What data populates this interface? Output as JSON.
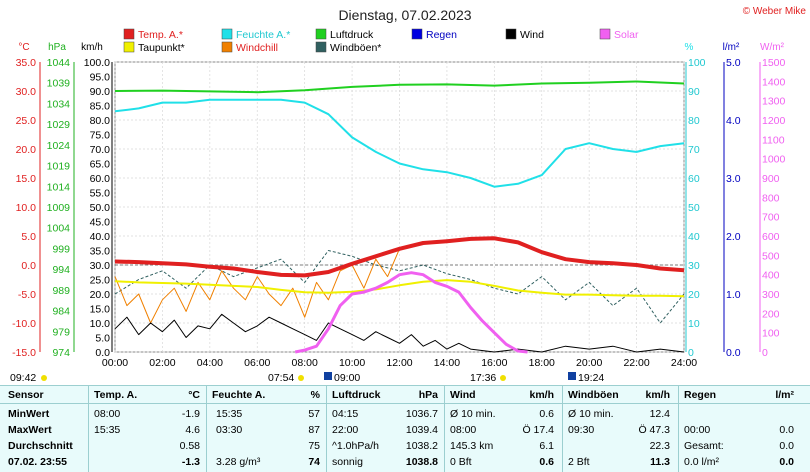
{
  "title": "Dienstag, 07.02.2023",
  "copyright": "© Weber Mike",
  "axis_units": {
    "temp": "°C",
    "press": "hPa",
    "wind": "km/h",
    "hum": "%",
    "rain": "l/m²",
    "solar": "W/m²"
  },
  "legend": [
    {
      "label": "Temp. A.*",
      "color": "#e02020"
    },
    {
      "label": "Feuchte A.*",
      "color": "#20e0e8"
    },
    {
      "label": "Luftdruck",
      "color": "#20d020"
    },
    {
      "label": "Regen",
      "color": "#0000e0"
    },
    {
      "label": "Wind",
      "color": "#000000"
    },
    {
      "label": "Solar",
      "color": "#f060f0"
    },
    {
      "label": "Taupunkt*",
      "color": "#f0f000"
    },
    {
      "label": "Windchill",
      "color": "#f08000"
    },
    {
      "label": "Windböen*",
      "color": "#306060"
    }
  ],
  "markers": {
    "sunrise_left": "09:42",
    "sunrise": "07:54",
    "solar_noon": "09:00",
    "max": "17:36",
    "sunset": "19:24"
  },
  "chart_data": {
    "type": "line",
    "x_ticks": [
      "00:00",
      "02:00",
      "04:00",
      "06:00",
      "08:00",
      "10:00",
      "12:00",
      "14:00",
      "16:00",
      "18:00",
      "20:00",
      "22:00",
      "24:00"
    ],
    "axes": {
      "temp": {
        "label": "°C",
        "ticks": [
          "35.0",
          "30.0",
          "25.0",
          "20.0",
          "15.0",
          "10.0",
          "5.0",
          "0.0",
          "-5.0",
          "-10.0",
          "-15.0"
        ],
        "ylim": [
          -15,
          35
        ]
      },
      "press": {
        "label": "hPa",
        "ticks": [
          "1044",
          "1039",
          "1034",
          "1029",
          "1024",
          "1019",
          "1014",
          "1009",
          "1004",
          "999",
          "994",
          "989",
          "984",
          "979",
          "974"
        ],
        "ylim": [
          974,
          1044
        ]
      },
      "wind": {
        "label": "km/h",
        "ticks": [
          "100.0",
          "95.0",
          "90.0",
          "85.0",
          "80.0",
          "75.0",
          "70.0",
          "65.0",
          "60.0",
          "55.0",
          "50.0",
          "45.0",
          "40.0",
          "35.0",
          "30.0",
          "25.0",
          "20.0",
          "15.0",
          "10.0",
          "5.0",
          "0.0"
        ],
        "ylim": [
          0,
          100
        ]
      },
      "hum": {
        "label": "%",
        "ticks": [
          "100",
          "90",
          "80",
          "70",
          "60",
          "50",
          "40",
          "30",
          "20",
          "10",
          "0"
        ],
        "ylim": [
          0,
          100
        ]
      },
      "rain": {
        "label": "l/m²",
        "ticks": [
          "5.0",
          "4.0",
          "3.0",
          "2.0",
          "1.0",
          "0.0"
        ],
        "ylim": [
          0,
          5
        ]
      },
      "solar": {
        "label": "W/m²",
        "ticks": [
          "1500",
          "1400",
          "1300",
          "1200",
          "1100",
          "1000",
          "900",
          "800",
          "700",
          "600",
          "500",
          "400",
          "300",
          "200",
          "100",
          "0"
        ],
        "ylim": [
          0,
          1500
        ]
      }
    },
    "series": [
      {
        "name": "Temp. A.*",
        "color": "#e02020",
        "axis": "temp",
        "x": [
          0,
          1,
          2,
          3,
          4,
          5,
          6,
          7,
          8,
          9,
          10,
          11,
          12,
          13,
          14,
          15,
          16,
          17,
          18,
          19,
          20,
          21,
          22,
          23,
          24
        ],
        "y": [
          0.6,
          0.5,
          0.3,
          0.1,
          -0.3,
          -0.6,
          -1.2,
          -1.7,
          -1.8,
          -1.2,
          0.2,
          1.5,
          2.8,
          3.8,
          4.1,
          4.5,
          4.6,
          3.9,
          2.2,
          1.0,
          0.5,
          0.3,
          0.0,
          -0.6,
          -0.9
        ]
      },
      {
        "name": "Feuchte A.*",
        "color": "#20e0e8",
        "axis": "hum",
        "x": [
          0,
          1,
          2,
          3,
          4,
          5,
          6,
          7,
          8,
          9,
          10,
          11,
          12,
          13,
          14,
          15,
          16,
          17,
          18,
          19,
          20,
          21,
          22,
          23,
          24
        ],
        "y": [
          83,
          84,
          86,
          86,
          87,
          87,
          87,
          87,
          86,
          82,
          74,
          69,
          65,
          63,
          62,
          60,
          57,
          58,
          61,
          70,
          72,
          70,
          69,
          71,
          72
        ]
      },
      {
        "name": "Luftdruck",
        "color": "#20d020",
        "axis": "press",
        "x": [
          0,
          2,
          4,
          6,
          8,
          10,
          12,
          14,
          16,
          18,
          20,
          22,
          24
        ],
        "y": [
          1037.0,
          1037.1,
          1036.9,
          1036.7,
          1037.2,
          1038.0,
          1038.5,
          1038.6,
          1038.3,
          1038.8,
          1039.0,
          1039.3,
          1038.8
        ]
      },
      {
        "name": "Taupunkt*",
        "color": "#f0f000",
        "axis": "temp",
        "x": [
          0,
          1,
          2,
          3,
          4,
          5,
          6,
          7,
          8,
          9,
          10,
          11,
          12,
          13,
          14,
          15,
          16,
          17,
          18,
          19,
          20,
          21,
          22,
          23,
          24
        ],
        "y": [
          -2.8,
          -3.0,
          -3.1,
          -3.2,
          -3.4,
          -3.6,
          -3.8,
          -4.3,
          -4.7,
          -4.8,
          -4.6,
          -4.2,
          -3.5,
          -2.9,
          -2.6,
          -2.9,
          -3.6,
          -4.4,
          -4.8,
          -5.1,
          -5.1,
          -5.2,
          -5.3,
          -5.3,
          -5.4
        ]
      },
      {
        "name": "Windchill",
        "color": "#f08000",
        "axis": "temp",
        "x": [
          0,
          0.5,
          1,
          1.5,
          2,
          2.5,
          3,
          3.5,
          4,
          4.5,
          5,
          5.5,
          6,
          6.5,
          7,
          7.5,
          8,
          8.5,
          9,
          9.5,
          10,
          10.5,
          11,
          11.5,
          12,
          13,
          14,
          15,
          16
        ],
        "y": [
          -2,
          -7,
          -5,
          -10,
          -6,
          -4,
          -8,
          -3,
          -6,
          -1,
          -4,
          -6,
          -2,
          -5,
          -7,
          -4,
          -9,
          -3,
          -6,
          -1,
          0,
          -4,
          1,
          -2,
          2.8,
          3.8,
          4.1,
          4.5,
          4.6
        ]
      },
      {
        "name": "Wind",
        "color": "#000000",
        "axis": "wind",
        "x": [
          0,
          0.5,
          1,
          1.5,
          2,
          2.5,
          3,
          3.5,
          4,
          4.5,
          5,
          5.5,
          6,
          6.5,
          7,
          7.5,
          8,
          8.5,
          9,
          9.5,
          10,
          10.5,
          11,
          11.5,
          12,
          12.5,
          13,
          13.5,
          14,
          14.5,
          15,
          16,
          17,
          18,
          19,
          20,
          21,
          22,
          23,
          24
        ],
        "y": [
          8,
          12,
          6,
          10,
          7,
          11,
          5,
          9,
          8,
          13,
          10,
          7,
          9,
          12,
          10,
          8,
          6,
          4,
          10,
          8,
          6,
          4,
          7,
          5,
          3,
          6,
          2,
          4,
          1,
          3,
          1,
          0,
          1,
          0,
          2,
          1,
          2,
          0,
          1,
          0
        ]
      },
      {
        "name": "Windböen*",
        "color": "#306060",
        "axis": "wind",
        "x": [
          0,
          1,
          2,
          3,
          4,
          5,
          6,
          7,
          8,
          9,
          10,
          11,
          12,
          13,
          14,
          15,
          16,
          17,
          18,
          19,
          20,
          21,
          22,
          23,
          24
        ],
        "y": [
          20,
          25,
          28,
          22,
          30,
          26,
          29,
          32,
          24,
          35,
          33,
          30,
          28,
          30,
          27,
          25,
          22,
          20,
          26,
          18,
          24,
          16,
          22,
          10,
          20
        ]
      },
      {
        "name": "Solar",
        "color": "#f060f0",
        "axis": "solar",
        "x": [
          7.6,
          8,
          8.5,
          9,
          9.5,
          10,
          10.5,
          11,
          11.5,
          12,
          12.5,
          13,
          13.5,
          14,
          14.5,
          15,
          15.5,
          16,
          16.5,
          17,
          17.4
        ],
        "y": [
          0,
          10,
          30,
          120,
          240,
          300,
          310,
          330,
          360,
          400,
          410,
          400,
          360,
          340,
          310,
          230,
          160,
          100,
          40,
          5,
          0
        ]
      }
    ],
    "rain_values": [
      0.0
    ]
  },
  "table": {
    "headers": [
      "Sensor",
      "Temp. A.",
      "°C",
      "Feuchte A.",
      "%",
      "Luftdruck",
      "hPa",
      "Wind",
      "km/h",
      "Windböen",
      "km/h",
      "Regen",
      "l/m²"
    ],
    "rows": [
      {
        "label": "MinWert",
        "cells": [
          "08:00",
          "-1.9",
          "15:35",
          "57",
          "04:15",
          "1036.7",
          "Ø 10 min.",
          "0.6",
          "Ø 10 min.",
          "12.4",
          "",
          ""
        ]
      },
      {
        "label": "MaxWert",
        "cells": [
          "15:35",
          "4.6",
          "03:30",
          "87",
          "22:00",
          "1039.4",
          "08:00",
          "Ö 17.4",
          "09:30",
          "Ö 47.3",
          "00:00",
          "0.0"
        ]
      },
      {
        "label": "Durchschnitt",
        "cells": [
          "",
          "0.58",
          "",
          "75",
          "^1.0hPa/h",
          "1038.2",
          "145.3 km",
          "6.1",
          "",
          "22.3",
          "Gesamt:",
          "0.0"
        ]
      },
      {
        "label": "07.02. 23:55",
        "cells": [
          "",
          "-1.3",
          "3.28 g/m³",
          "74",
          "sonnig",
          "1038.8",
          "0 Bft",
          "0.6",
          "2 Bft",
          "11.3",
          "0.0 l/m²",
          "0.0"
        ]
      }
    ]
  }
}
